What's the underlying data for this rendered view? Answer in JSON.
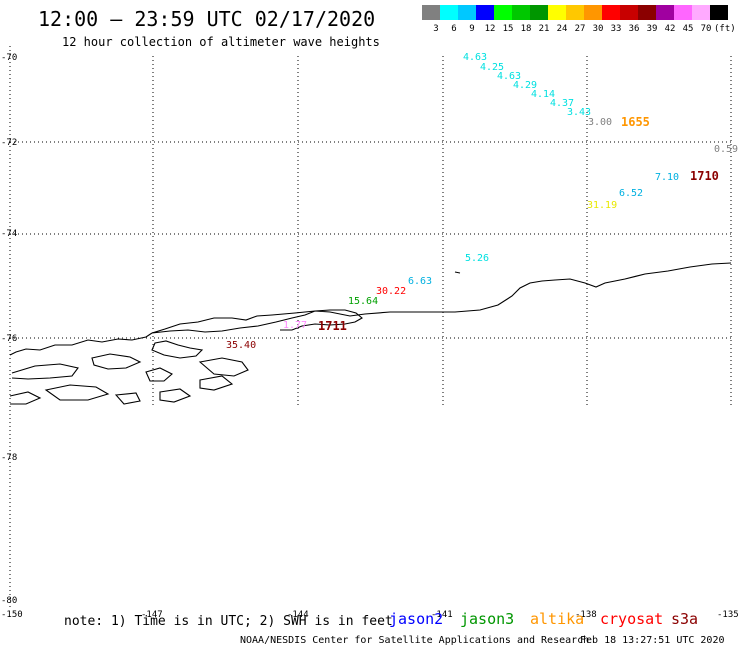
{
  "header": {
    "title": "12:00 – 23:59 UTC 02/17/2020",
    "subtitle": "12 hour collection of altimeter wave heights"
  },
  "legend": {
    "unit": "(ft)",
    "bins": [
      {
        "label": "3",
        "color": "#808080"
      },
      {
        "label": "6",
        "color": "#00ffff"
      },
      {
        "label": "9",
        "color": "#00c8ff"
      },
      {
        "label": "12",
        "color": "#0000ff"
      },
      {
        "label": "15",
        "color": "#00ff00"
      },
      {
        "label": "18",
        "color": "#00c800"
      },
      {
        "label": "21",
        "color": "#009600"
      },
      {
        "label": "24",
        "color": "#ffff00"
      },
      {
        "label": "27",
        "color": "#ffc800"
      },
      {
        "label": "30",
        "color": "#ff9600"
      },
      {
        "label": "33",
        "color": "#ff0000"
      },
      {
        "label": "36",
        "color": "#c80000"
      },
      {
        "label": "39",
        "color": "#8b0000"
      },
      {
        "label": "42",
        "color": "#a000a0"
      },
      {
        "label": "45",
        "color": "#ff66ff"
      },
      {
        "label": "70",
        "color": "#ffaaff"
      },
      {
        "label": "",
        "color": "#000000"
      }
    ]
  },
  "axes": {
    "lat_labels": [
      "-70",
      "-72",
      "-74",
      "-76",
      "-78",
      "-80"
    ],
    "lon_labels": [
      "-150",
      "-147",
      "-144",
      "-141",
      "-138",
      "-135"
    ]
  },
  "observations": [
    {
      "text": "4.63",
      "color": "#00e0e0"
    },
    {
      "text": "4.25",
      "color": "#00e0e0"
    },
    {
      "text": "4.63",
      "color": "#00e0e0"
    },
    {
      "text": "4.29",
      "color": "#00e0e0"
    },
    {
      "text": "4.14",
      "color": "#00e0e0"
    },
    {
      "text": "4.37",
      "color": "#00e0e0"
    },
    {
      "text": "3.43",
      "color": "#00e0e0"
    },
    {
      "text": "3.00",
      "color": "#808080"
    },
    {
      "text": "0.59",
      "color": "#808080"
    },
    {
      "text": "7.10",
      "color": "#00b0e0"
    },
    {
      "text": "6.52",
      "color": "#00b0e0"
    },
    {
      "text": "31.19",
      "color": "#e8e800"
    },
    {
      "text": "5.26",
      "color": "#00e0e0"
    },
    {
      "text": "6.63",
      "color": "#00b0e0"
    },
    {
      "text": "30.22",
      "color": "#ff0000"
    },
    {
      "text": "15.64",
      "color": "#00a000"
    },
    {
      "text": "35.40",
      "color": "#8b0000"
    },
    {
      "text": "1.77",
      "color": "#ff88ff"
    }
  ],
  "times": [
    {
      "text": "1655",
      "color": "#ff9600"
    },
    {
      "text": "1710",
      "color": "#8b0000"
    },
    {
      "text": "1711",
      "color": "#8b0000"
    }
  ],
  "footer": {
    "note": "note: 1) Time is in UTC; 2) SWH is in feet",
    "satellites": [
      {
        "name": "jason2",
        "color": "#0000ff"
      },
      {
        "name": "jason3",
        "color": "#009600"
      },
      {
        "name": "altika",
        "color": "#ff9600"
      },
      {
        "name": "cryosat",
        "color": "#ff0000"
      },
      {
        "name": "s3a",
        "color": "#8b0000"
      }
    ],
    "credit": "NOAA/NESDIS Center for Satellite Applications and Research",
    "timestamp": "Feb 18 13:27:51 UTC 2020"
  }
}
